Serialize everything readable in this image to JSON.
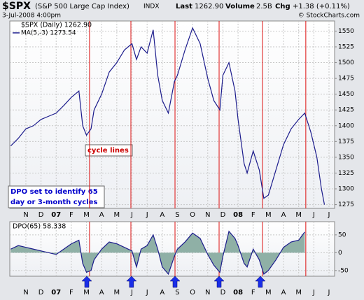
{
  "header": {
    "symbol": "$SPX",
    "name": "(S&P 500 Large Cap Index)",
    "exchange": "INDX",
    "date": "3-Jul-2008 4:00pm",
    "last_label": "Last",
    "last": "1262.90",
    "volume_label": "Volume",
    "volume": "2.5B",
    "chg_label": "Chg",
    "chg": "+1.38 (+0.11%)",
    "credit": "© StockCharts.com"
  },
  "chart_data": [
    {
      "type": "line",
      "legend": [
        "$SPX (Daily) 1262.90",
        "MA(5,-3) 1273.54"
      ],
      "annotations": [
        "cycle lines",
        "DPO set to identify 65",
        "day or 3-month cycles"
      ],
      "color": "#1c1c8c",
      "x": [
        -1,
        -0.5,
        0,
        0.5,
        1,
        1.5,
        2,
        2.5,
        3,
        3.5,
        3.75,
        4,
        4.3,
        4.5,
        5,
        5.5,
        6,
        6.5,
        7,
        7.3,
        7.6,
        8,
        8.4,
        8.7,
        9,
        9.4,
        9.8,
        10,
        10.5,
        11,
        11.5,
        12,
        12.4,
        12.8,
        13,
        13.4,
        13.8,
        14,
        14.4,
        14.6,
        15,
        15.4,
        15.7,
        16,
        16.5,
        17,
        17.5,
        18,
        18.4,
        18.8,
        19.2,
        19.5,
        19.7
      ],
      "values": [
        1368,
        1380,
        1395,
        1400,
        1410,
        1415,
        1420,
        1432,
        1445,
        1455,
        1400,
        1385,
        1395,
        1425,
        1450,
        1485,
        1500,
        1520,
        1530,
        1505,
        1525,
        1515,
        1552,
        1480,
        1440,
        1420,
        1470,
        1480,
        1520,
        1555,
        1530,
        1475,
        1440,
        1425,
        1480,
        1500,
        1455,
        1410,
        1340,
        1325,
        1360,
        1330,
        1285,
        1290,
        1330,
        1370,
        1395,
        1410,
        1420,
        1390,
        1350,
        1300,
        1275
      ],
      "cycle_lines": [
        4.2,
        6.93,
        9.84,
        12.75,
        15.61,
        18.47
      ],
      "xlim": [
        -1.06,
        20.37
      ],
      "xticks": [
        {
          "value": 0,
          "label": "N"
        },
        {
          "value": 1,
          "label": "D"
        },
        {
          "value": 2,
          "label": "07"
        },
        {
          "value": 3,
          "label": "F"
        },
        {
          "value": 4,
          "label": "M"
        },
        {
          "value": 5,
          "label": "A"
        },
        {
          "value": 6,
          "label": "M"
        },
        {
          "value": 7,
          "label": "J"
        },
        {
          "value": 8,
          "label": "J"
        },
        {
          "value": 9,
          "label": "A"
        },
        {
          "value": 10,
          "label": "S"
        },
        {
          "value": 11,
          "label": "O"
        },
        {
          "value": 12,
          "label": "N"
        },
        {
          "value": 13,
          "label": "D"
        },
        {
          "value": 14,
          "label": "08"
        },
        {
          "value": 15,
          "label": "F"
        },
        {
          "value": 16,
          "label": "M"
        },
        {
          "value": 17,
          "label": "A"
        },
        {
          "value": 18,
          "label": "M"
        },
        {
          "value": 19,
          "label": "J"
        },
        {
          "value": 20,
          "label": "J"
        }
      ],
      "ylim": [
        1269,
        1566
      ],
      "yticks": [
        1275,
        1300,
        1325,
        1350,
        1375,
        1400,
        1425,
        1450,
        1475,
        1500,
        1525,
        1550
      ],
      "grid": true
    },
    {
      "type": "area",
      "legend": [
        "DPO(65) 58.338"
      ],
      "color": "#1c1c8c",
      "fill": "#8fb0a6",
      "x": [
        -1,
        -0.5,
        0,
        0.5,
        1,
        1.5,
        2,
        2.5,
        3,
        3.5,
        3.75,
        4,
        4.3,
        4.5,
        5,
        5.5,
        6,
        6.5,
        7,
        7.3,
        7.6,
        8,
        8.4,
        8.7,
        9,
        9.4,
        9.8,
        10,
        10.5,
        11,
        11.5,
        12,
        12.4,
        12.8,
        13,
        13.4,
        13.8,
        14,
        14.4,
        14.6,
        15,
        15.4,
        15.7,
        16,
        16.5,
        17,
        17.5,
        18,
        18.4
      ],
      "values": [
        10,
        20,
        15,
        10,
        5,
        0,
        -5,
        10,
        25,
        35,
        -30,
        -55,
        -50,
        -20,
        10,
        30,
        25,
        15,
        5,
        -40,
        10,
        20,
        50,
        10,
        -40,
        -60,
        -10,
        10,
        30,
        55,
        40,
        -5,
        -35,
        -55,
        -10,
        60,
        40,
        20,
        -30,
        -40,
        10,
        -20,
        -60,
        -50,
        -20,
        15,
        30,
        35,
        58
      ],
      "arrows": [
        4.02,
        6.97,
        9.84,
        12.75,
        15.47
      ],
      "ylim": [
        -66,
        87
      ],
      "yticks": [
        -50,
        0,
        50
      ],
      "grid": true
    }
  ]
}
